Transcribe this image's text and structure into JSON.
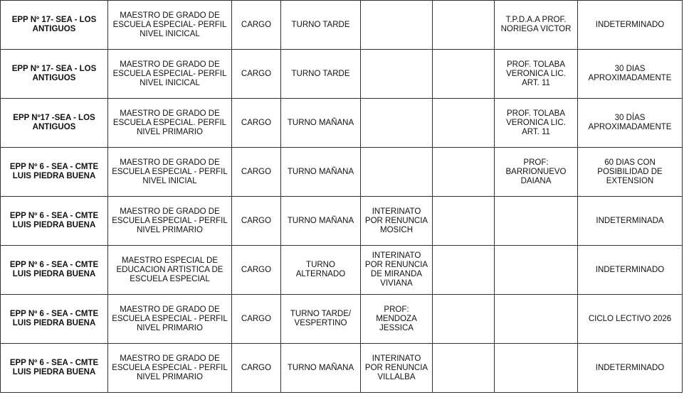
{
  "rows": [
    [
      "EPP Nº 17- SEA - LOS ANTIGUOS",
      "MAESTRO DE GRADO DE ESCUELA ESPECIAL- PERFIL NIVEL INICICAL",
      "CARGO",
      "TURNO TARDE",
      "",
      "",
      "T.P.D.A.A PROF. NORIEGA VICTOR",
      "INDETERMINADO"
    ],
    [
      "EPP Nº 17- SEA - LOS ANTIGUOS",
      "MAESTRO DE GRADO DE ESCUELA ESPECIAL- PERFIL NIVEL INICICAL",
      "CARGO",
      "TURNO TARDE",
      "",
      "",
      "PROF. TOLABA VERONICA LIC. ART. 11",
      "30 DIAS APROXIMADAMENTE"
    ],
    [
      "EPP Nº17 -SEA - LOS ANTIGUOS",
      "MAESTRO DE GRADO DE ESCUELA ESPECIAL. PERFIL NIVEL PRIMARIO",
      "CARGO",
      "TURNO MAÑANA",
      "",
      "",
      "PROF. TOLABA VERONICA LIC. ART. 11",
      "30 DÍAS APROXIMADAMENTE"
    ],
    [
      "EPP Nº 6 - SEA - CMTE LUIS PIEDRA BUENA",
      "MAESTRO DE GRADO DE ESCUELA ESPECIAL - PERFIL NIVEL INICIAL",
      "CARGO",
      "TURNO MAÑANA",
      "",
      "",
      "PROF: BARRIONUEVO DAIANA",
      "60 DIAS CON POSIBILIDAD DE EXTENSION"
    ],
    [
      "EPP Nº 6 - SEA - CMTE LUIS PIEDRA BUENA",
      "MAESTRO DE GRADO DE ESCUELA ESPECIAL - PERFIL NIVEL PRIMARIO",
      "CARGO",
      "TURNO MAÑANA",
      "INTERINATO POR RENUNCIA MOSICH",
      "",
      "",
      "INDETERMINADA"
    ],
    [
      "EPP Nº 6 - SEA - CMTE LUIS PIEDRA BUENA",
      "MAESTRO ESPECIAL DE EDUCACION ARTISTICA DE ESCUELA ESPECIAL",
      "CARGO",
      "TURNO ALTERNADO",
      "INTERINATO POR RENUNCIA DE MIRANDA VIVIANA",
      "",
      "",
      "INDETERMINADO"
    ],
    [
      "EPP Nº 6 - SEA - CMTE LUIS PIEDRA BUENA",
      "MAESTRO DE GRADO DE ESCUELA ESPECIAL - PERFIL NIVEL PRIMARIO",
      "CARGO",
      "TURNO TARDE/ VESPERTINO",
      "PROF: MENDOZA JESSICA",
      "",
      "",
      "CICLO LECTIVO 2026"
    ],
    [
      "EPP Nº 6 - SEA - CMTE LUIS PIEDRA BUENA",
      "MAESTRO DE GRADO DE ESCUELA ESPECIAL - PERFIL NIVEL PRIMARIO",
      "CARGO",
      "TURNO MAÑANA",
      "INTERINATO POR RENUNCIA VILLALBA",
      "",
      "",
      "INDETERMINADO"
    ]
  ]
}
